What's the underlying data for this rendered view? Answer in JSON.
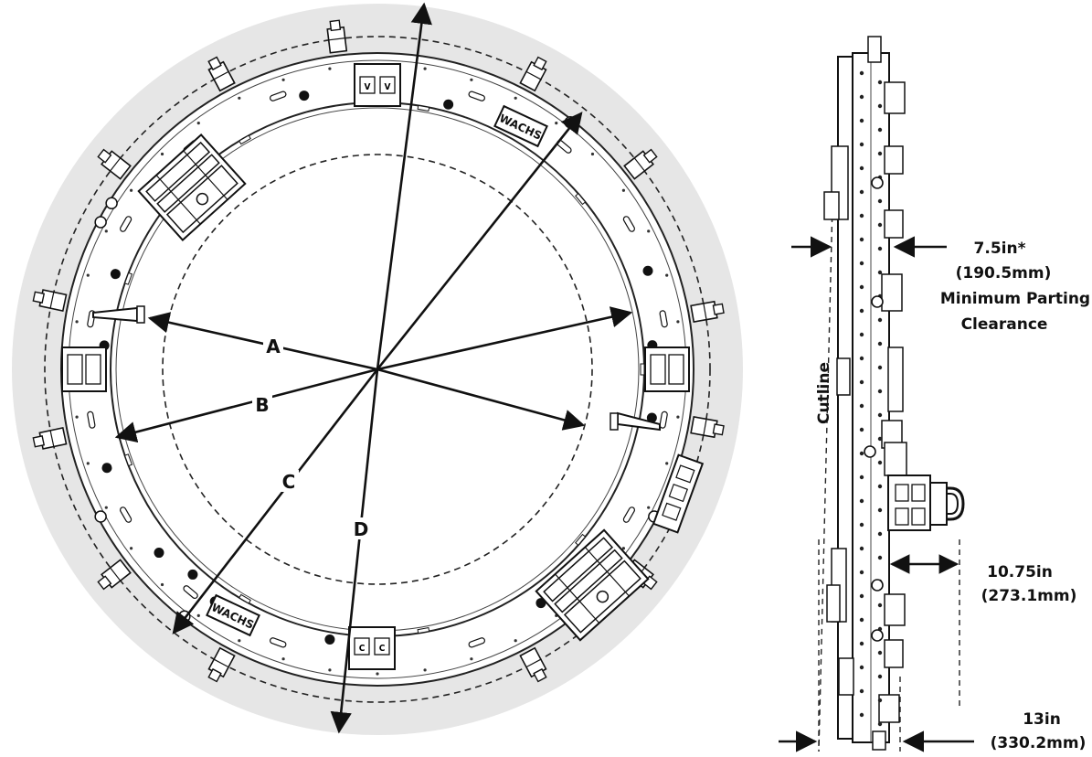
{
  "diagram": {
    "front_view": {
      "dimension_letters": [
        "A",
        "B",
        "C",
        "D"
      ],
      "logo_text": "WACHS"
    },
    "side_view": {
      "cutline_label": "Cutline",
      "parting_clearance": {
        "value": "7.5in*",
        "metric": "(190.5mm)",
        "line1": "Minimum Parting",
        "line2": "Clearance"
      },
      "depth_a": {
        "value": "10.75in",
        "metric": "(273.1mm)"
      },
      "depth_b": {
        "value": "13in",
        "metric": "(330.2mm)"
      }
    }
  }
}
